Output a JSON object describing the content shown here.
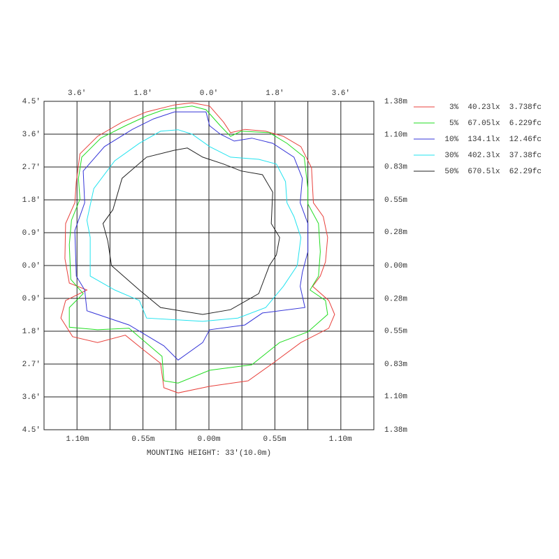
{
  "chart_data": {
    "type": "contour",
    "xlabel": "MOUNTING HEIGHT: 33'(10.0m)",
    "xlim": [
      -4.5,
      4.5
    ],
    "ylim": [
      -4.5,
      4.5
    ],
    "x2lim": [
      -1.38,
      1.38
    ],
    "y2lim": [
      -1.38,
      1.38
    ],
    "xgrid": [
      -3.6,
      -2.7,
      -1.8,
      -0.9,
      0,
      0.9,
      1.8,
      2.7,
      3.6
    ],
    "xticks": [
      {
        "value": -3.6,
        "label": "3.6'"
      },
      {
        "value": -1.8,
        "label": "1.8'"
      },
      {
        "value": 0,
        "label": "0.0'"
      },
      {
        "value": 1.8,
        "label": "1.8'"
      },
      {
        "value": 3.6,
        "label": "3.6'"
      }
    ],
    "x2ticks": [
      {
        "value": -1.1,
        "label": "1.10m"
      },
      {
        "value": -0.55,
        "label": "0.55m"
      },
      {
        "value": 0,
        "label": "0.00m"
      },
      {
        "value": 0.55,
        "label": "0.55m"
      },
      {
        "value": 1.1,
        "label": "1.10m"
      }
    ],
    "yticks": [
      {
        "value": 4.5,
        "label": "4.5'"
      },
      {
        "value": 3.6,
        "label": "3.6'"
      },
      {
        "value": 2.7,
        "label": "2.7'"
      },
      {
        "value": 1.8,
        "label": "1.8'"
      },
      {
        "value": 0.9,
        "label": "0.9'"
      },
      {
        "value": 0,
        "label": "0.0'"
      },
      {
        "value": -0.9,
        "label": "0.9'"
      },
      {
        "value": -1.8,
        "label": "1.8'"
      },
      {
        "value": -2.7,
        "label": "2.7'"
      },
      {
        "value": -3.6,
        "label": "3.6'"
      },
      {
        "value": -4.5,
        "label": "4.5'"
      }
    ],
    "y2ticks": [
      {
        "value": 1.38,
        "label": "1.38m"
      },
      {
        "value": 1.1,
        "label": "1.10m"
      },
      {
        "value": 0.83,
        "label": "0.83m"
      },
      {
        "value": 0.55,
        "label": "0.55m"
      },
      {
        "value": 0.28,
        "label": "0.28m"
      },
      {
        "value": 0,
        "label": "0.00m"
      },
      {
        "value": -0.28,
        "label": "0.28m"
      },
      {
        "value": -0.55,
        "label": "0.55m"
      },
      {
        "value": -0.83,
        "label": "0.83m"
      },
      {
        "value": -1.1,
        "label": "1.10m"
      },
      {
        "value": -1.38,
        "label": "1.38m"
      }
    ],
    "series": [
      {
        "name": "3%  40.23lx  3.738fc",
        "color": "#e8413c",
        "x": [
          -0.94,
          -0.46,
          0.02,
          0.4,
          0.59,
          0.98,
          1.55,
          2.03,
          2.51,
          2.8,
          2.85,
          3.12,
          3.24,
          3.18,
          3.04,
          2.83,
          3.27,
          3.43,
          3.27,
          2.51,
          1.74,
          1.07,
          0.02,
          -0.84,
          -1.23,
          -1.32,
          -1.8,
          -2.28,
          -3.04,
          -3.72,
          -4.04,
          -3.91,
          -3.33,
          -3.81,
          -3.93,
          -3.91,
          -3.66,
          -3.62,
          -3.52,
          -3.04,
          -2.37,
          -1.7
        ],
        "y": [
          4.4,
          4.46,
          4.37,
          3.93,
          3.64,
          3.73,
          3.68,
          3.54,
          3.26,
          2.68,
          1.72,
          1.34,
          0.77,
          0.1,
          -0.29,
          -0.57,
          -0.96,
          -1.34,
          -1.72,
          -2.11,
          -2.68,
          -3.16,
          -3.31,
          -3.49,
          -3.35,
          -2.68,
          -2.3,
          -1.91,
          -2.11,
          -1.95,
          -1.44,
          -0.96,
          -0.67,
          -0.48,
          0.19,
          1.15,
          1.72,
          2.3,
          3.06,
          3.54,
          3.93,
          4.21
        ]
      },
      {
        "name": "5%  67.05lx  6.229fc",
        "color": "#22dd22",
        "x": [
          -1.23,
          -0.46,
          -0.08,
          0.31,
          0.59,
          0.88,
          1.65,
          2.13,
          2.6,
          2.7,
          2.7,
          2.99,
          3.04,
          2.99,
          2.76,
          3.18,
          3.24,
          2.7,
          1.93,
          1.17,
          0.02,
          -0.84,
          -1.23,
          -1.28,
          -2.18,
          -3.04,
          -3.81,
          -3.81,
          -3.43,
          -3.77,
          -3.81,
          -3.75,
          -3.52,
          -3.56,
          -3.47,
          -2.95,
          -2.28,
          -1.7
        ],
        "y": [
          4.27,
          4.37,
          4.27,
          3.83,
          3.54,
          3.68,
          3.64,
          3.35,
          2.97,
          2.11,
          1.69,
          1.15,
          0.38,
          -0.29,
          -0.67,
          -0.96,
          -1.34,
          -1.82,
          -2.11,
          -2.72,
          -2.87,
          -3.22,
          -3.16,
          -2.49,
          -1.72,
          -1.76,
          -1.69,
          -1.15,
          -0.77,
          -0.38,
          0.57,
          1.24,
          1.82,
          2.39,
          2.97,
          3.49,
          3.83,
          4.1
        ]
      },
      {
        "name": "10%  134.1lx  12.46fc",
        "color": "#3535d8",
        "x": [
          -0.94,
          -0.08,
          0.02,
          0.31,
          0.69,
          1.17,
          1.74,
          2.32,
          2.55,
          2.49,
          2.7,
          2.7,
          2.55,
          2.49,
          2.62,
          1.46,
          0.98,
          0.02,
          -0.17,
          -0.84,
          -1.23,
          -2.18,
          -3.33,
          -3.39,
          -3.62,
          -3.66,
          -3.39,
          -3.43,
          -2.85,
          -2.09,
          -1.51
        ],
        "y": [
          4.21,
          4.21,
          3.83,
          3.6,
          3.41,
          3.49,
          3.35,
          2.97,
          2.39,
          1.72,
          1.15,
          0.38,
          -0.19,
          -0.57,
          -1.15,
          -1.3,
          -1.63,
          -1.76,
          -2.11,
          -2.59,
          -2.2,
          -1.63,
          -1.24,
          -0.67,
          -0.29,
          0.96,
          1.72,
          2.59,
          3.26,
          3.73,
          4.02
        ]
      },
      {
        "name": "30%  402.3lx  37.38fc",
        "color": "#22e3ef",
        "x": [
          -1.32,
          -0.84,
          -0.46,
          0.02,
          0.59,
          1.36,
          1.84,
          2.09,
          2.13,
          2.32,
          2.51,
          2.41,
          2.03,
          1.55,
          0.79,
          -0.17,
          -1.7,
          -1.9,
          -2.57,
          -3.24,
          -3.24,
          -3.33,
          -3.14,
          -2.57,
          -1.9
        ],
        "y": [
          3.68,
          3.72,
          3.6,
          3.26,
          2.97,
          2.91,
          2.78,
          2.3,
          1.72,
          1.34,
          0.77,
          0,
          -0.57,
          -1.15,
          -1.44,
          -1.53,
          -1.44,
          -0.96,
          -0.67,
          -0.29,
          0.77,
          1.24,
          2.11,
          2.87,
          3.35
        ]
      },
      {
        "name": "50%  670.5lx  62.29fc",
        "color": "#222222",
        "x": [
          -0.94,
          -0.59,
          -0.17,
          0.4,
          0.88,
          1.46,
          1.74,
          1.7,
          1.93,
          1.84,
          1.65,
          1.36,
          0.59,
          -0.17,
          -1.32,
          -1.9,
          -2.66,
          -2.76,
          -2.89,
          -2.62,
          -2.37,
          -1.7
        ],
        "y": [
          3.16,
          3.22,
          2.97,
          2.78,
          2.59,
          2.49,
          2.01,
          1.15,
          0.77,
          0.29,
          0,
          -0.77,
          -1.21,
          -1.34,
          -1.15,
          -0.67,
          0,
          0.67,
          1.15,
          1.53,
          2.39,
          2.97
        ]
      }
    ]
  }
}
